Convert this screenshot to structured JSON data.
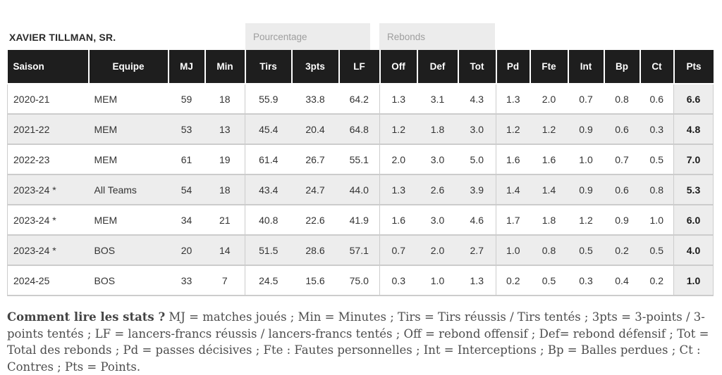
{
  "player": {
    "name": "XAVIER TILLMAN, SR."
  },
  "group_headers": {
    "percentage": "Pourcentage",
    "rebounds": "Rebonds"
  },
  "table": {
    "columns": [
      "Saison",
      "Equipe",
      "MJ",
      "Min",
      "Tirs",
      "3pts",
      "LF",
      "Off",
      "Def",
      "Tot",
      "Pd",
      "Fte",
      "Int",
      "Bp",
      "Ct",
      "Pts"
    ],
    "rows": [
      [
        "2020-21",
        "MEM",
        "59",
        "18",
        "55.9",
        "33.8",
        "64.2",
        "1.3",
        "3.1",
        "4.3",
        "1.3",
        "2.0",
        "0.7",
        "0.8",
        "0.6",
        "6.6"
      ],
      [
        "2021-22",
        "MEM",
        "53",
        "13",
        "45.4",
        "20.4",
        "64.8",
        "1.2",
        "1.8",
        "3.0",
        "1.2",
        "1.2",
        "0.9",
        "0.6",
        "0.3",
        "4.8"
      ],
      [
        "2022-23",
        "MEM",
        "61",
        "19",
        "61.4",
        "26.7",
        "55.1",
        "2.0",
        "3.0",
        "5.0",
        "1.6",
        "1.6",
        "1.0",
        "0.7",
        "0.5",
        "7.0"
      ],
      [
        "2023-24 *",
        "All Teams",
        "54",
        "18",
        "43.4",
        "24.7",
        "44.0",
        "1.3",
        "2.6",
        "3.9",
        "1.4",
        "1.4",
        "0.9",
        "0.6",
        "0.8",
        "5.3"
      ],
      [
        "2023-24 *",
        "MEM",
        "34",
        "21",
        "40.8",
        "22.6",
        "41.9",
        "1.6",
        "3.0",
        "4.6",
        "1.7",
        "1.8",
        "1.2",
        "0.9",
        "1.0",
        "6.0"
      ],
      [
        "2023-24 *",
        "BOS",
        "20",
        "14",
        "51.5",
        "28.6",
        "57.1",
        "0.7",
        "2.0",
        "2.7",
        "1.0",
        "0.8",
        "0.5",
        "0.2",
        "0.5",
        "4.0"
      ],
      [
        "2024-25",
        "BOS",
        "33",
        "7",
        "24.5",
        "15.6",
        "75.0",
        "0.3",
        "1.0",
        "1.3",
        "0.2",
        "0.5",
        "0.3",
        "0.4",
        "0.2",
        "1.0"
      ]
    ]
  },
  "legend": {
    "lead": "Comment lire les stats ?",
    "body": " MJ = matches joués ; Min = Minutes ; Tirs = Tirs réussis / Tirs tentés ; 3pts = 3-points / 3-points tentés ; LF = lancers-francs réussis / lancers-francs tentés ; Off = rebond offensif ; Def= rebond défensif ; Tot = Total des rebonds ; Pd = passes décisives ; Fte : Fautes personnelles ; Int = Interceptions ; Bp = Balles perdues ; Ct : Contres ; Pts = Points."
  },
  "colors": {
    "header_bg": "#1e1e1e",
    "header_text": "#ffffff",
    "row_stripe": "#ededed",
    "points_col_bg": "#ededed",
    "group_label_bg": "#ececec",
    "group_label_text": "#9e9e9e",
    "row_border": "#cccccc",
    "legend_text": "#4d4d4d"
  }
}
